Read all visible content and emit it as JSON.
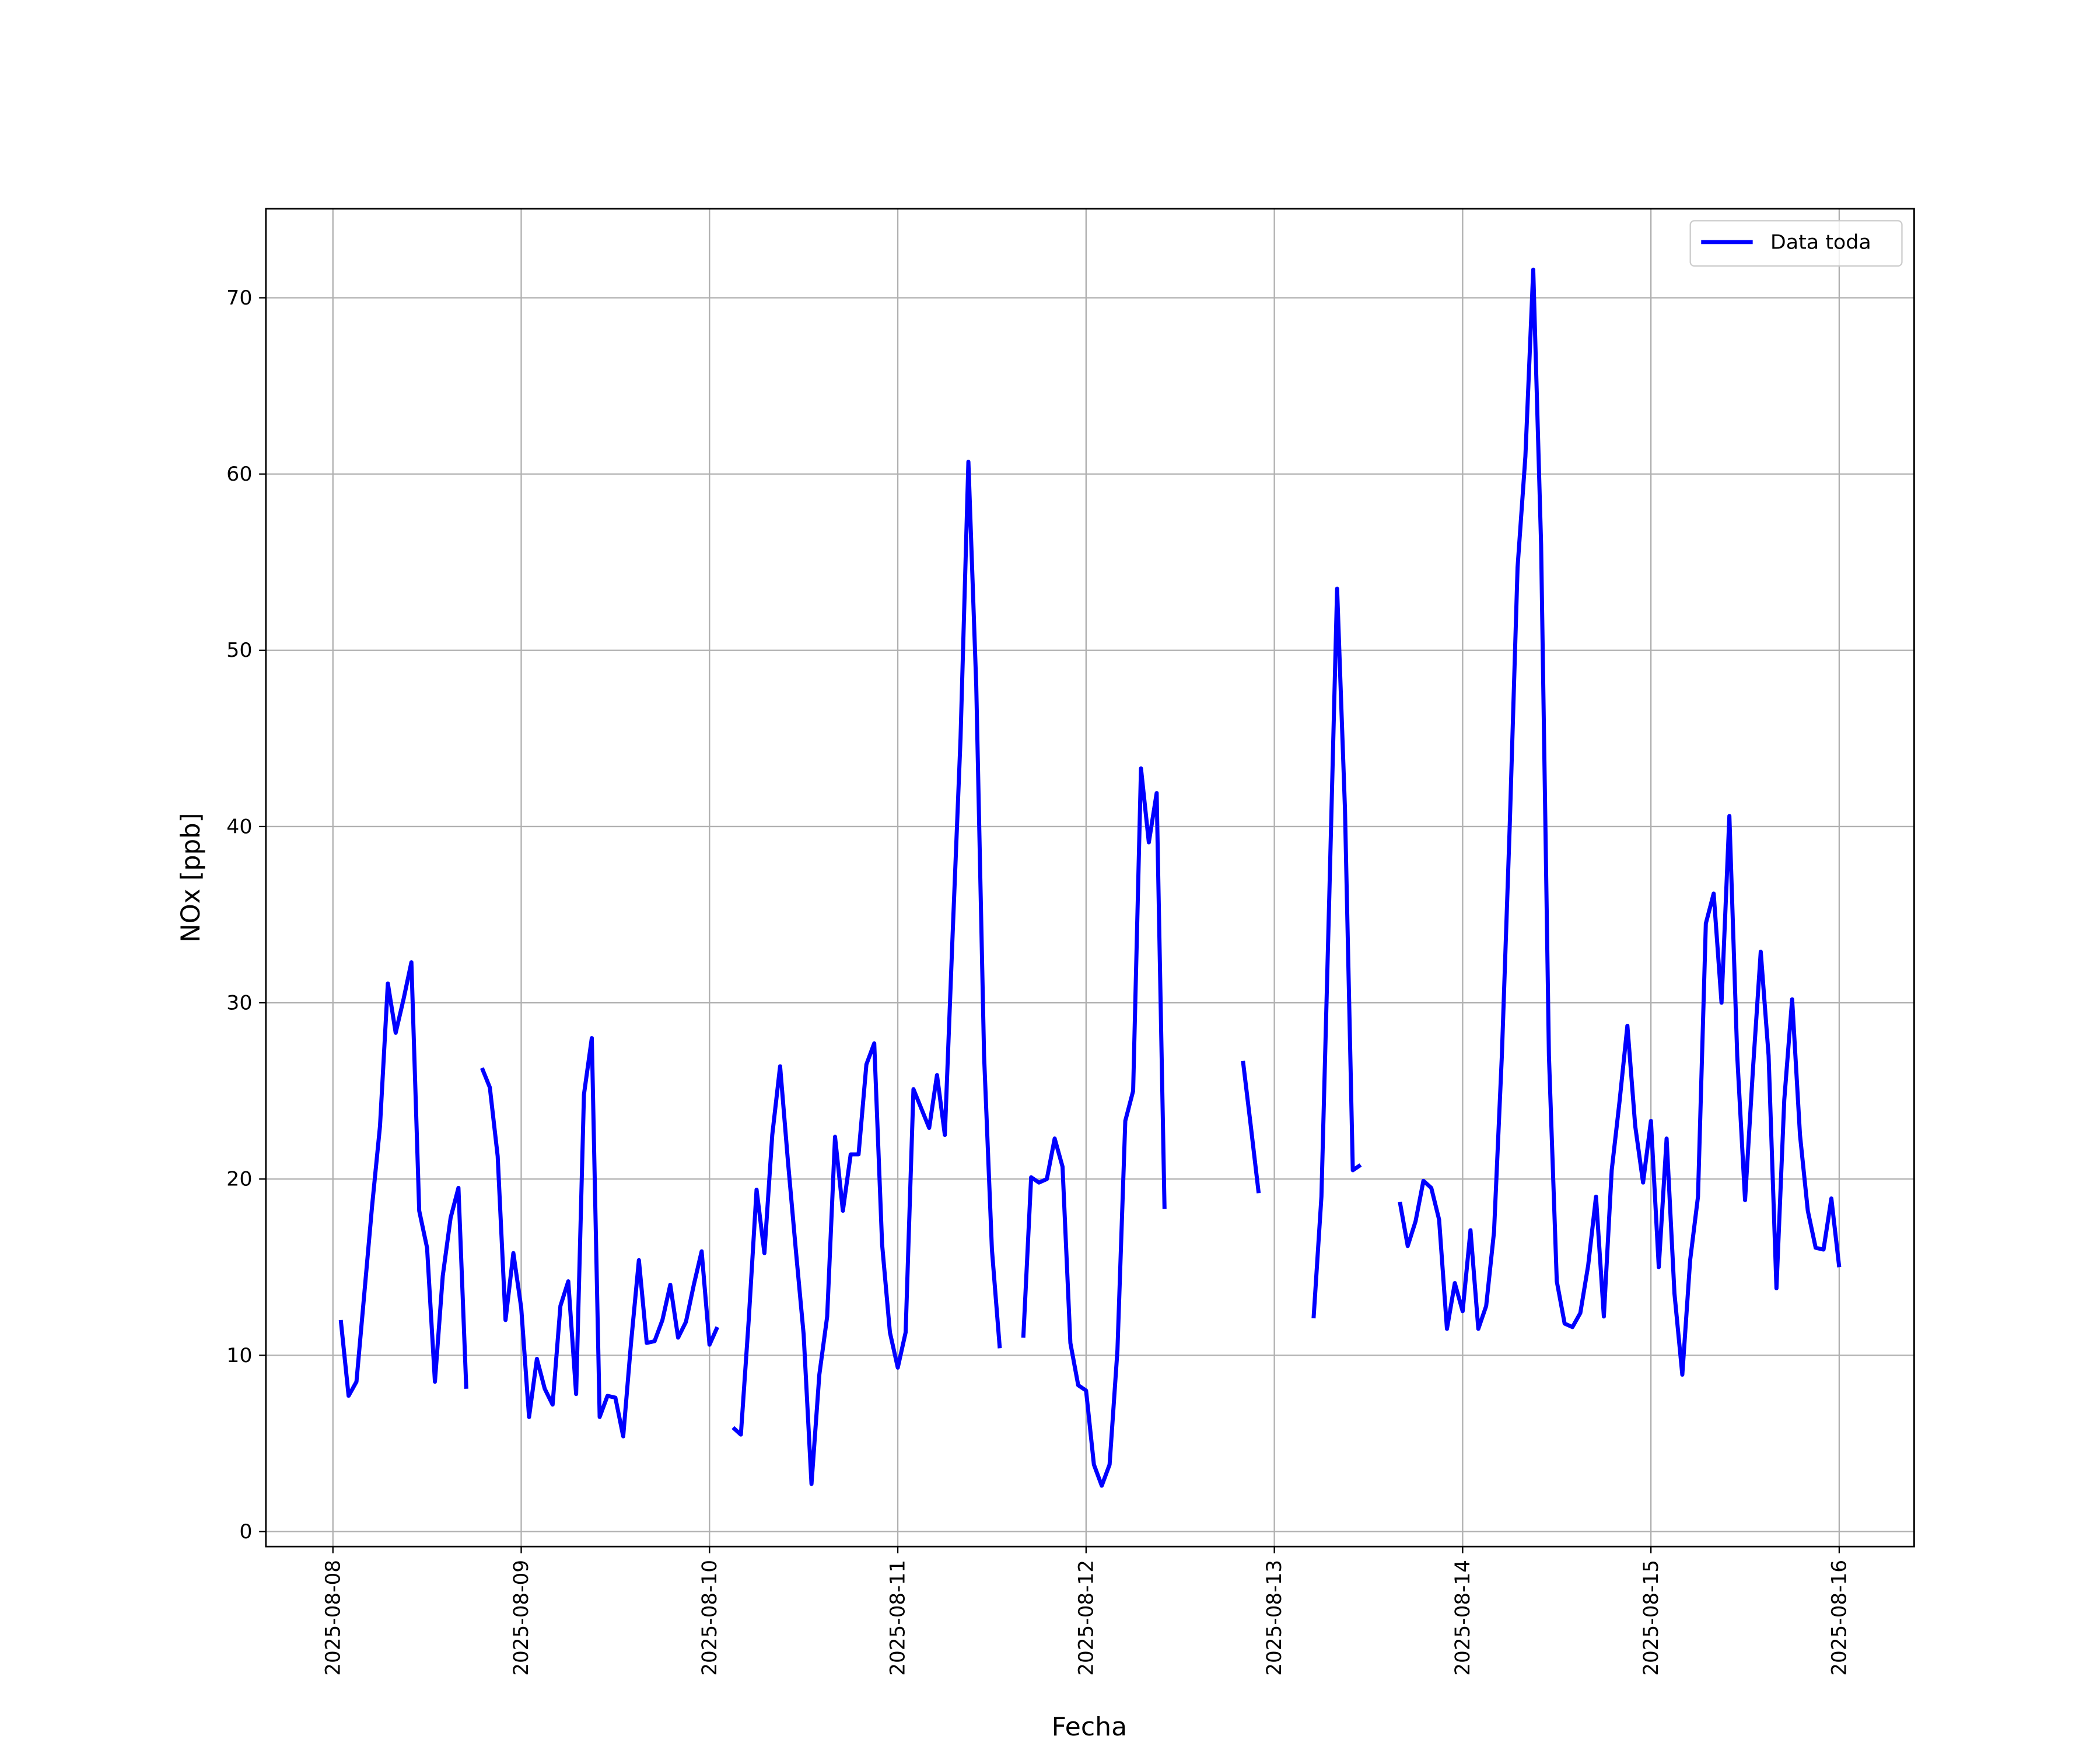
{
  "chart_data": {
    "type": "line",
    "xlabel": "Fecha",
    "ylabel": "NOx [ppb]",
    "x": [
      20308.0417,
      20308.0833,
      20308.125,
      20308.1667,
      20308.2083,
      20308.25,
      20308.2917,
      20308.3333,
      20308.375,
      20308.4167,
      20308.4583,
      20308.5,
      20308.5417,
      20308.5833,
      20308.625,
      20308.6667,
      20308.7083,
      20308.75,
      20308.7917,
      20308.8333,
      20308.875,
      20308.9167,
      20308.9583,
      20309,
      20309.0417,
      20309.0833,
      20309.125,
      20309.1667,
      20309.2083,
      20309.25,
      20309.2917,
      20309.3333,
      20309.375,
      20309.4167,
      20309.4583,
      20309.5,
      20309.5417,
      20309.5833,
      20309.625,
      20309.6667,
      20309.7083,
      20309.75,
      20309.7917,
      20309.8333,
      20309.875,
      20309.9167,
      20309.9583,
      20310,
      20310.0417,
      20310.0833,
      20310.125,
      20310.1667,
      20310.2083,
      20310.25,
      20310.2917,
      20310.3333,
      20310.375,
      20310.4167,
      20310.4583,
      20310.5,
      20310.5417,
      20310.5833,
      20310.625,
      20310.6667,
      20310.7083,
      20310.75,
      20310.7917,
      20310.8333,
      20310.875,
      20310.9167,
      20310.9583,
      20311,
      20311.0417,
      20311.0833,
      20311.125,
      20311.1667,
      20311.2083,
      20311.25,
      20311.2917,
      20311.3333,
      20311.375,
      20311.4167,
      20311.4583,
      20311.5,
      20311.5417,
      20311.5833,
      20311.625,
      20311.6667,
      20311.7083,
      20311.75,
      20311.7917,
      20311.8333,
      20311.875,
      20311.9167,
      20311.9583,
      20312,
      20312.0417,
      20312.0833,
      20312.125,
      20312.1667,
      20312.2083,
      20312.25,
      20312.2917,
      20312.3333,
      20312.375,
      20312.4167,
      20312.4583,
      20312.5,
      20312.5417,
      20312.5833,
      20312.625,
      20312.6667,
      20312.7083,
      20312.75,
      20312.7917,
      20312.8333,
      20312.875,
      20312.9167,
      20312.9583,
      20313,
      20313.0417,
      20313.0833,
      20313.125,
      20313.1667,
      20313.2083,
      20313.25,
      20313.2917,
      20313.3333,
      20313.375,
      20313.4167,
      20313.4583,
      20313.5,
      20313.5417,
      20313.5833,
      20313.625,
      20313.6667,
      20313.7083,
      20313.75,
      20313.7917,
      20313.8333,
      20313.875,
      20313.9167,
      20313.9583,
      20314,
      20314.0417,
      20314.0833,
      20314.125,
      20314.1667,
      20314.2083,
      20314.25,
      20314.2917,
      20314.3333,
      20314.375,
      20314.4167,
      20314.4583,
      20314.5,
      20314.5417,
      20314.5833,
      20314.625,
      20314.6667,
      20314.7083,
      20314.75,
      20314.7917,
      20314.8333,
      20314.875,
      20314.9167,
      20314.9583,
      20315,
      20315.0417,
      20315.0833,
      20315.125,
      20315.1667,
      20315.2083,
      20315.25,
      20315.2917,
      20315.3333,
      20315.375,
      20315.4167,
      20315.4583,
      20315.5,
      20315.5417,
      20315.5833,
      20315.625,
      20315.6667,
      20315.7083,
      20315.75,
      20315.7917,
      20315.8333,
      20315.875,
      20315.9167,
      20315.9583,
      20316
    ],
    "series": [
      {
        "name": "Data toda",
        "color": "#0000ff",
        "values": [
          12,
          7.7,
          8.5,
          13.5,
          18.5,
          23,
          31.1,
          28.3,
          30.2,
          32.3,
          18.2,
          16.1,
          8.5,
          14.5,
          17.8,
          19.5,
          8.1,
          null,
          26.3,
          25.2,
          21.3,
          12,
          15.8,
          12.7,
          6.5,
          9.8,
          8.1,
          7.2,
          12.8,
          14.2,
          7.8,
          24.8,
          28,
          6.5,
          7.7,
          7.6,
          5.4,
          10.7,
          15.4,
          10.7,
          10.8,
          12,
          14,
          11,
          11.9,
          14,
          15.9,
          10.6,
          11.6,
          null,
          5.9,
          5.5,
          12,
          19.4,
          15.8,
          22.5,
          26.4,
          21,
          16,
          11.2,
          2.7,
          8.9,
          12.2,
          22.4,
          18.2,
          21.4,
          21.4,
          26.5,
          27.7,
          16.3,
          11.3,
          9.3,
          11.3,
          25.1,
          24,
          22.9,
          25.9,
          22.5,
          34,
          45,
          60.7,
          48,
          27,
          16,
          10.4,
          null,
          null,
          11,
          20.1,
          19.8,
          20,
          22.3,
          20.7,
          10.7,
          8.3,
          8,
          3.8,
          2.6,
          3.8,
          10.3,
          23.3,
          25,
          43.3,
          39.1,
          41.9,
          18.3,
          null,
          null,
          null,
          null,
          null,
          null,
          null,
          null,
          null,
          26.7,
          23,
          19.2,
          null,
          null,
          null,
          null,
          null,
          null,
          12.1,
          19,
          36,
          53.5,
          41,
          20.5,
          20.8,
          null,
          null,
          null,
          null,
          18.7,
          16.2,
          17.6,
          19.9,
          19.5,
          17.7,
          11.5,
          14.1,
          12.5,
          17.1,
          11.5,
          12.8,
          17,
          27,
          40,
          54.7,
          61,
          71.6,
          56,
          27,
          14.2,
          11.8,
          11.6,
          12.4,
          15.1,
          19,
          12.2,
          20.5,
          24.4,
          28.7,
          23,
          19.8,
          23.3,
          15,
          22.3,
          13.5,
          8.9,
          15.4,
          19,
          34.5,
          36.2,
          30,
          40.6,
          27,
          18.8,
          26.2,
          32.9,
          27,
          13.8,
          24.5,
          30.2,
          22.5,
          18.2,
          16.1,
          16,
          18.9,
          15
        ]
      }
    ],
    "xlim": [
      20307.644,
      20316.398
    ],
    "xticks": [
      {
        "value": 20308,
        "label": "2025-08-08"
      },
      {
        "value": 20309,
        "label": "2025-08-09"
      },
      {
        "value": 20310,
        "label": "2025-08-10"
      },
      {
        "value": 20311,
        "label": "2025-08-11"
      },
      {
        "value": 20312,
        "label": "2025-08-12"
      },
      {
        "value": 20313,
        "label": "2025-08-13"
      },
      {
        "value": 20314,
        "label": "2025-08-14"
      },
      {
        "value": 20315,
        "label": "2025-08-15"
      },
      {
        "value": 20316,
        "label": "2025-08-16"
      }
    ],
    "ylim": [
      -0.85,
      75.05
    ],
    "yticks": [
      0,
      10,
      20,
      30,
      40,
      50,
      60,
      70
    ],
    "grid": true,
    "legend": "upper right"
  }
}
